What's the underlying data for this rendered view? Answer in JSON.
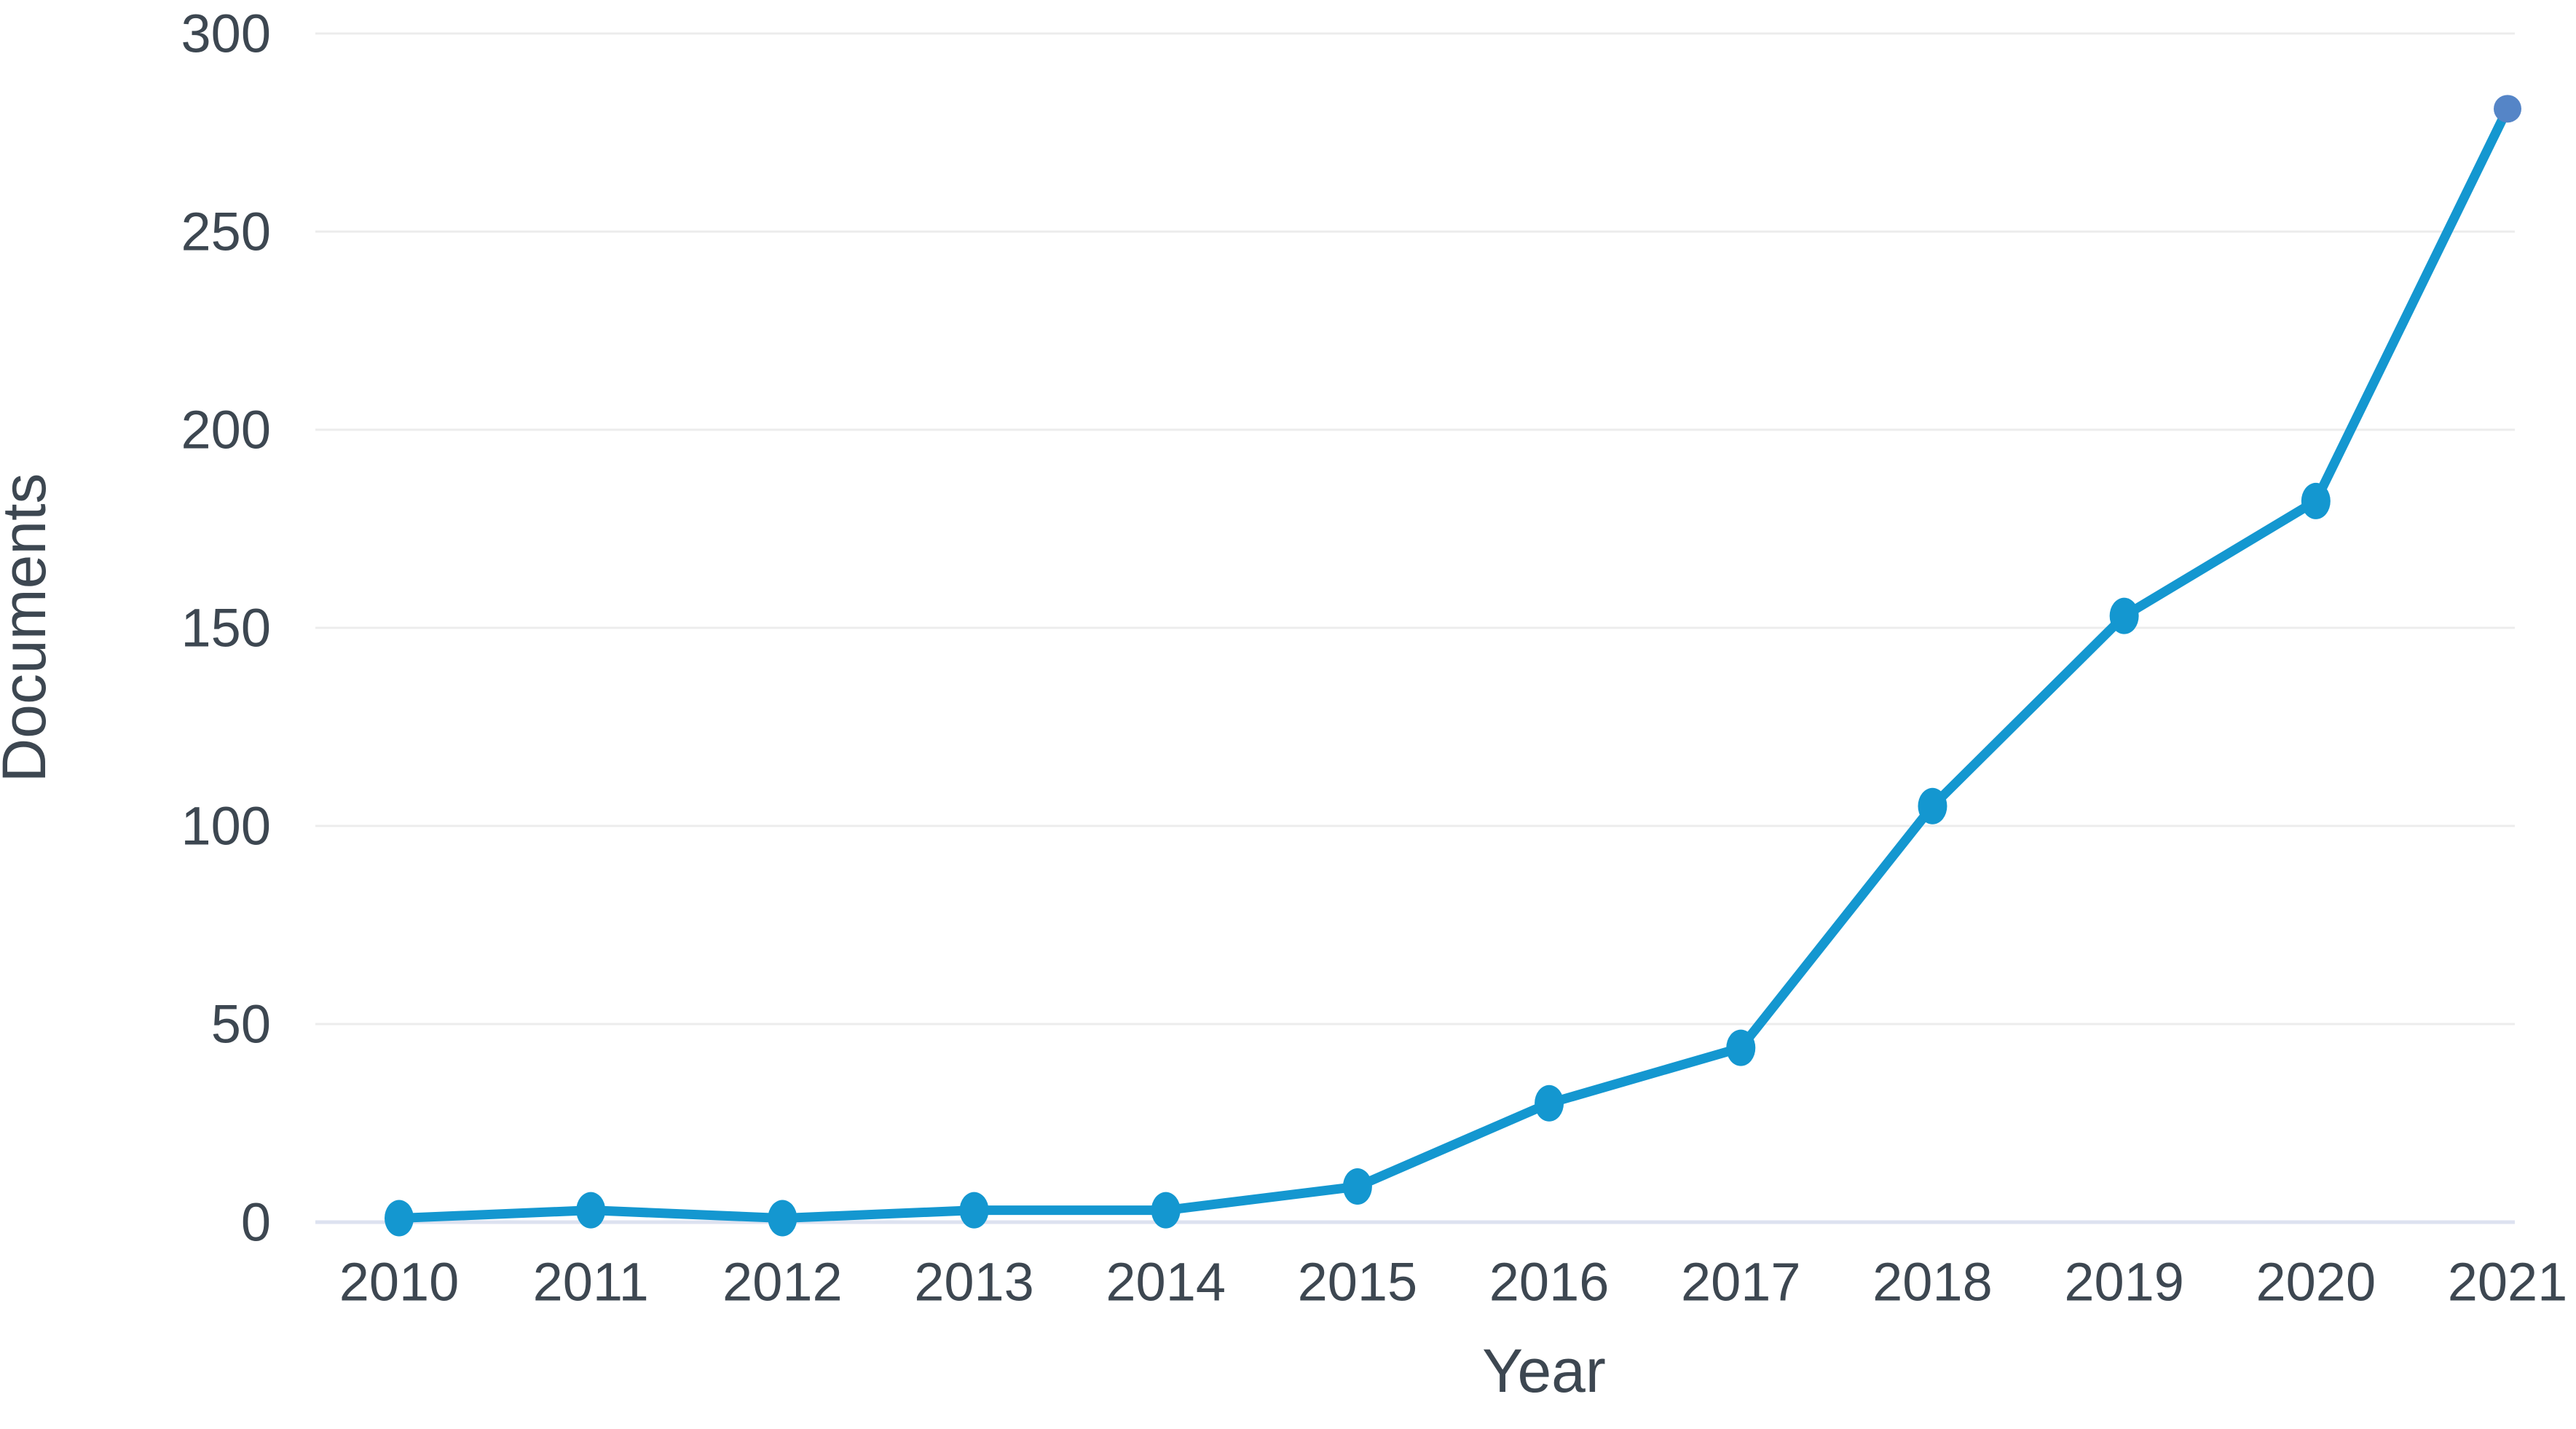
{
  "chart_data": {
    "type": "line",
    "title": "",
    "xlabel": "Year",
    "ylabel": "Documents",
    "x": [
      "2010",
      "2011",
      "2012",
      "2013",
      "2014",
      "2015",
      "2016",
      "2017",
      "2018",
      "2019",
      "2020",
      "2021"
    ],
    "series": [
      {
        "name": "Documents",
        "values": [
          1,
          3,
          1,
          3,
          3,
          9,
          30,
          44,
          105,
          153,
          182,
          281
        ]
      }
    ],
    "ylim": [
      0,
      300
    ],
    "y_ticks": [
      0,
      50,
      100,
      150,
      200,
      250,
      300
    ],
    "grid": "horizontal-only",
    "legend": "none",
    "colors": {
      "line": "#1497d0",
      "marker": "#1497d0",
      "last_marker": "#5585c7",
      "gridline": "#ececec",
      "baseline": "#dde2f0",
      "text": "#3d4751"
    }
  }
}
